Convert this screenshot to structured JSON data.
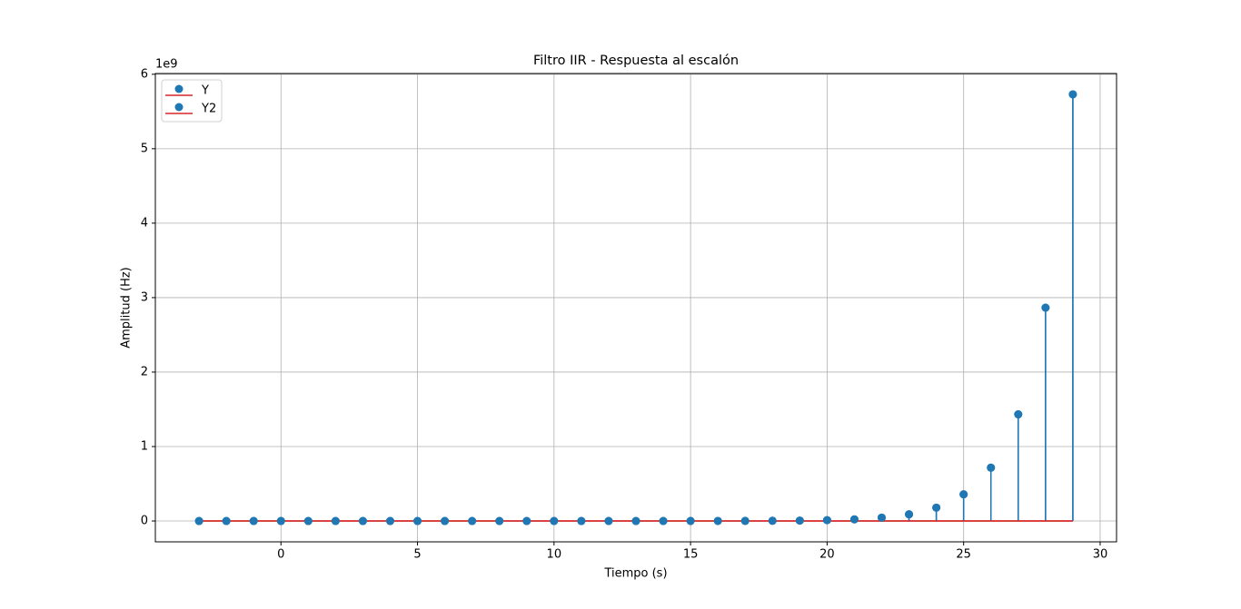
{
  "chart_data": {
    "type": "stem",
    "title": "Filtro IIR - Respuesta al escalón",
    "x_label": "Tiempo (s)",
    "y_label": "Amplitud (Hz)",
    "y_offset_label": "1e9",
    "x": [
      -3,
      -2,
      -1,
      0,
      1,
      2,
      3,
      4,
      5,
      6,
      7,
      8,
      9,
      10,
      11,
      12,
      13,
      14,
      15,
      16,
      17,
      18,
      19,
      20,
      21,
      22,
      23,
      24,
      25,
      26,
      27,
      28,
      29
    ],
    "series": [
      {
        "name": "Y",
        "color": "#1f77b4",
        "baseline_color": "#d62728",
        "values": [
          1,
          3,
          5,
          11,
          21,
          43,
          85,
          171,
          342,
          683,
          1366,
          2732,
          5465,
          10929,
          21858,
          43716,
          87433,
          174866,
          349731,
          699463,
          1398926,
          2797852,
          5595703,
          11191406,
          22382813,
          44765625,
          89531250,
          179062500,
          358125000,
          716250000,
          1432500000,
          2865000000,
          5730000000
        ]
      },
      {
        "name": "Y2",
        "color": "#1f77b4",
        "baseline_color": "#d62728",
        "values": [
          1,
          3,
          5,
          11,
          21,
          43,
          85,
          171,
          342,
          683,
          1366,
          2732,
          5465,
          10929,
          21858,
          43716,
          87433,
          174866,
          349731,
          699463,
          1398926,
          2797852,
          5595703,
          11191406,
          22382813,
          44765625,
          89531250,
          179062500,
          358125000,
          716250000,
          1432500000,
          2865000000,
          5730000000
        ]
      }
    ],
    "xlim": [
      -4.6,
      30.6
    ],
    "ylim": [
      -280000000,
      6010000000
    ],
    "xticks": [
      0,
      5,
      10,
      15,
      20,
      25,
      30
    ],
    "yticks": [
      0,
      {
        "value": 1000000000,
        "label": "1"
      },
      {
        "value": 2000000000,
        "label": "2"
      },
      {
        "value": 3000000000,
        "label": "3"
      },
      {
        "value": 4000000000,
        "label": "4"
      },
      {
        "value": 5000000000,
        "label": "5"
      },
      {
        "value": 6000000000,
        "label": "6"
      }
    ],
    "grid": true,
    "legend": "upper left"
  }
}
